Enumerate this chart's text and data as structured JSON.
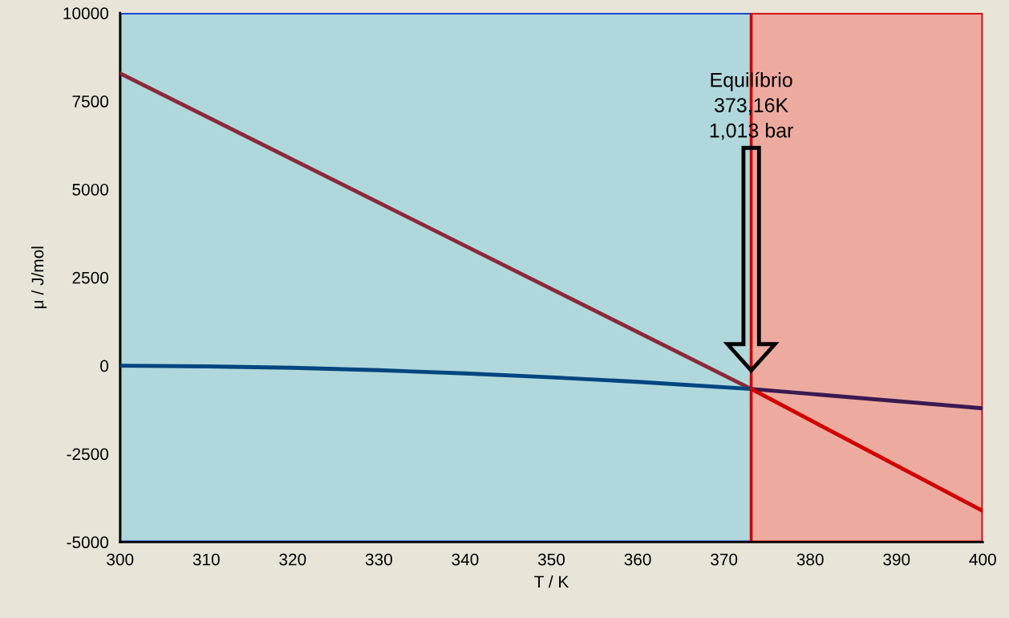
{
  "chart_data": {
    "type": "line",
    "xlabel": "T / K",
    "ylabel": "μ / J/mol",
    "xlim": [
      300,
      400
    ],
    "xticks": [
      300,
      310,
      320,
      330,
      340,
      350,
      360,
      370,
      380,
      390,
      400
    ],
    "ylim": [
      -5000,
      10000
    ],
    "yticks": [
      -5000,
      -2500,
      0,
      2500,
      5000,
      7500,
      10000
    ],
    "grid": false,
    "marker": "none",
    "line_style": "solid",
    "bands": [
      {
        "axis": "x",
        "from": 300,
        "to": 373.16,
        "label": null,
        "color": "#b0d8dc"
      },
      {
        "axis": "x",
        "from": 373.16,
        "to": 400,
        "label": null,
        "color": "#edaba0"
      }
    ],
    "series": [
      {
        "color": "#8b2a3a",
        "x": [
          300,
          373.16
        ],
        "values": [
          8290,
          -660
        ]
      },
      {
        "color": "#00457f",
        "x": [
          300,
          310,
          320,
          330,
          340,
          350,
          360,
          373.16
        ],
        "values": [
          0,
          -20,
          -60,
          -130,
          -220,
          -330,
          -460,
          -660
        ]
      },
      {
        "color": "#3a1a50",
        "x": [
          373.16,
          400
        ],
        "values": [
          -660,
          -1210
        ]
      },
      {
        "color": "#d00000",
        "x": [
          373.16,
          400
        ],
        "values": [
          -660,
          -4120
        ]
      }
    ],
    "annotations": [
      "Equilíbrio\n373,16K\n1,013 bar"
    ]
  }
}
